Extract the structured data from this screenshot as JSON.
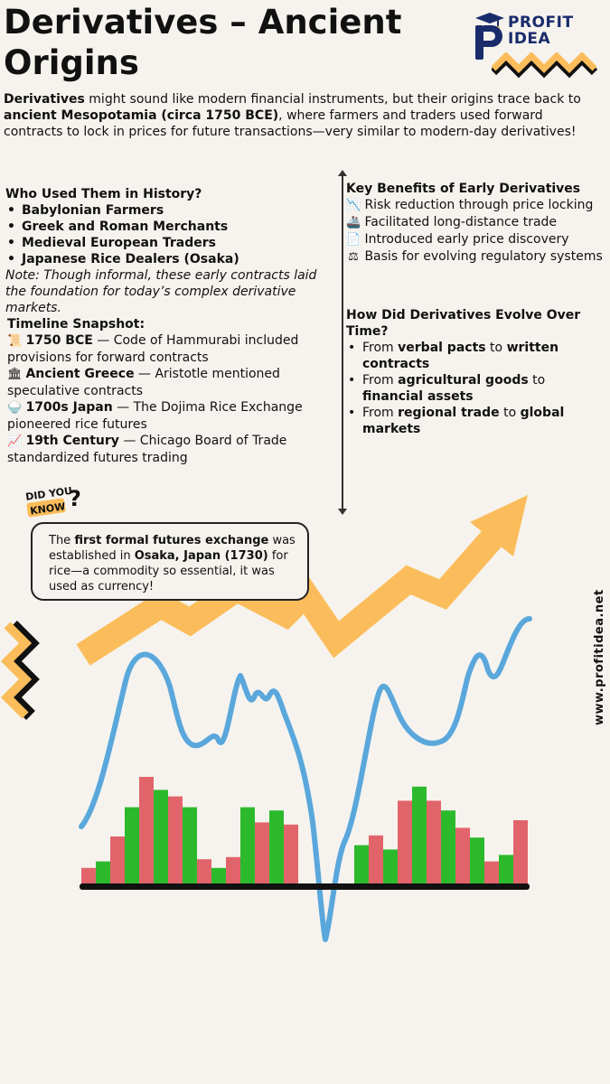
{
  "title": "Derivatives – Ancient Origins",
  "logo": {
    "line1": "PROFIT",
    "line2": "IDEA"
  },
  "intro": {
    "p1_bold": "Derivatives",
    "p2": " might sound like modern financial instruments, but their origins trace back to ",
    "p3_bold": "ancient Mesopotamia (circa 1750 BCE)",
    "p4": ", where farmers and traders used forward contracts to lock in prices for future transactions—very similar to modern-day derivatives!"
  },
  "who_used": {
    "heading": "Who Used Them in History?",
    "items": [
      "Babylonian Farmers",
      "Greek and Roman Merchants",
      "Medieval European Traders",
      "Japanese Rice Dealers (Osaka)"
    ],
    "note_label": "Note",
    "note_text": ": Though informal, these early contracts laid the foundation for today’s complex derivative markets."
  },
  "timeline": {
    "heading": "Timeline Snapshot:",
    "items": [
      {
        "icon": "📜",
        "bold": "1750 BCE",
        "text": " — Code of Hammurabi included provisions for forward contracts"
      },
      {
        "icon": "🏛",
        "bold": "Ancient Greece",
        "text": " — Aristotle mentioned speculative contracts"
      },
      {
        "icon": "🍚",
        "bold": "1700s Japan",
        "text": " — The Dojima Rice Exchange pioneered rice futures"
      },
      {
        "icon": "📈",
        "bold": "19th Century",
        "text": " — Chicago Board of Trade standardized futures trading"
      }
    ]
  },
  "benefits": {
    "heading": "Key Benefits of Early Derivatives",
    "items": [
      {
        "icon": "📉",
        "text": "Risk reduction through price locking"
      },
      {
        "icon": "🚢",
        "text": "Facilitated long-distance trade"
      },
      {
        "icon": "📄",
        "text": "Introduced early price discovery"
      },
      {
        "icon": "⚖",
        "text": "Basis for evolving regulatory systems"
      }
    ]
  },
  "evolution": {
    "heading": "How Did Derivatives Evolve Over Time?",
    "items": [
      {
        "a": "From ",
        "b": "verbal pacts",
        "c": " to ",
        "d": "written contracts"
      },
      {
        "a": "From ",
        "b": "agricultural goods",
        "c": " to ",
        "d": "financial assets"
      },
      {
        "a": "From ",
        "b": "regional trade",
        "c": " to ",
        "d": "global markets"
      }
    ]
  },
  "did_you_know": {
    "badge_line1": "DID YOU",
    "badge_line2": "KNOW",
    "t1": "The ",
    "t2_bold": "first formal futures exchange",
    "t3": " was established in ",
    "t4_bold": "Osaka, Japan (1730)",
    "t5": " for rice—a commodity so essential, it was used as currency!"
  },
  "website": "www.profitidea.net",
  "colors": {
    "arrow": "#fbbd5b",
    "line": "#5aa7dc",
    "bar_green": "#2cba2c",
    "bar_red": "#e2646b",
    "navy": "#1a2b6b"
  },
  "bars": {
    "group1": [
      "red",
      "green",
      "red",
      "green",
      "red",
      "green",
      "red",
      "green",
      "red",
      "green",
      "red",
      "green",
      "red",
      "green",
      "red"
    ],
    "heights1": [
      0.16,
      0.22,
      0.45,
      0.72,
      1.0,
      0.88,
      0.82,
      0.72,
      0.24,
      0.16,
      0.26,
      0.72,
      0.58,
      0.69,
      0.56
    ],
    "group2": [
      "green",
      "red",
      "green",
      "red",
      "green",
      "red",
      "green",
      "red",
      "green",
      "red",
      "green",
      "red"
    ],
    "heights2": [
      0.37,
      0.46,
      0.33,
      0.78,
      0.91,
      0.78,
      0.69,
      0.53,
      0.44,
      0.22,
      0.28,
      0.6
    ]
  }
}
